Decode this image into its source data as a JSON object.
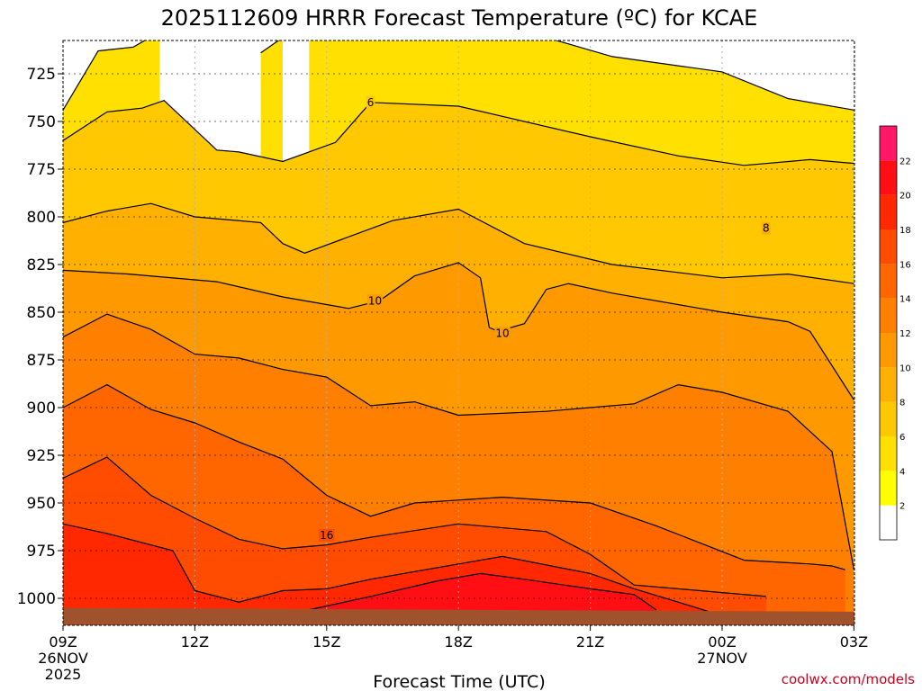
{
  "chart_data": {
    "type": "heatmap",
    "title": "2025112609 HRRR Forecast Temperature (ºC) for KCAE",
    "xlabel": "Forecast Time (UTC)",
    "ylabel": "",
    "x_ticks": [
      "09Z",
      "12Z",
      "15Z",
      "18Z",
      "21Z",
      "00Z",
      "03Z"
    ],
    "x_subticks": [
      {
        "tick": "09Z",
        "lines": [
          "26NOV",
          "2025"
        ]
      },
      {
        "tick": "00Z",
        "lines": [
          "27NOV"
        ]
      }
    ],
    "x_range": [
      "09Z",
      "03Z"
    ],
    "y_axis": "pressure (hPa), decreasing upward",
    "y_ticks": [
      725,
      750,
      775,
      800,
      825,
      850,
      875,
      900,
      925,
      950,
      975,
      1000
    ],
    "y_range": [
      1010,
      710
    ],
    "grid": true,
    "colorbar": {
      "placement": "right",
      "levels": [
        2,
        4,
        6,
        8,
        10,
        12,
        14,
        16,
        18,
        20,
        22
      ],
      "colors": [
        "#ffffff",
        "#ffff00",
        "#ffe000",
        "#ffc800",
        "#ffb000",
        "#ff9900",
        "#ff8000",
        "#ff6600",
        "#ff4c00",
        "#ff2800",
        "#ff0e14",
        "#ff1868"
      ]
    },
    "contour_labels": [
      {
        "text": "6",
        "time_h": 7.0,
        "p": 740
      },
      {
        "text": "8",
        "time_h": 16.0,
        "p": 806
      },
      {
        "text": "10",
        "time_h": 7.1,
        "p": 844
      },
      {
        "text": "10",
        "time_h": 10.0,
        "p": 861
      },
      {
        "text": "16",
        "time_h": 6.0,
        "p": 967
      }
    ],
    "contours": [
      {
        "level": 4,
        "points": [
          [
            0.0,
            744
          ],
          [
            0.8,
            713
          ],
          [
            1.6,
            711
          ],
          [
            2.2,
            703
          ]
        ]
      },
      {
        "level": 4,
        "points": [
          [
            4.5,
            714
          ],
          [
            5.0,
            706
          ]
        ]
      },
      {
        "level": 4,
        "points": [
          [
            5.6,
            704
          ],
          [
            8.0,
            703
          ],
          [
            11.0,
            706
          ],
          [
            12.5,
            716
          ],
          [
            15.0,
            724
          ],
          [
            16.5,
            738
          ],
          [
            18.0,
            744
          ]
        ]
      },
      {
        "level": 6,
        "points": [
          [
            0.0,
            760
          ],
          [
            1.0,
            745
          ],
          [
            1.8,
            743
          ],
          [
            2.3,
            739
          ],
          [
            3.5,
            765
          ],
          [
            4.0,
            766
          ],
          [
            5.0,
            771
          ],
          [
            6.2,
            761
          ],
          [
            7.0,
            740
          ],
          [
            9.0,
            742
          ],
          [
            12.0,
            758
          ],
          [
            14.0,
            768
          ],
          [
            15.5,
            773
          ],
          [
            17.0,
            770
          ],
          [
            18.0,
            772
          ]
        ]
      },
      {
        "level": 8,
        "points": [
          [
            0.0,
            803
          ],
          [
            1.0,
            797
          ],
          [
            2.0,
            793
          ],
          [
            3.0,
            800
          ],
          [
            4.5,
            803
          ],
          [
            5.0,
            814
          ],
          [
            5.5,
            819
          ],
          [
            7.5,
            802
          ],
          [
            9.0,
            796
          ],
          [
            10.5,
            814
          ],
          [
            12.5,
            825
          ],
          [
            15.0,
            832
          ],
          [
            16.5,
            830
          ],
          [
            18.0,
            835
          ]
        ]
      },
      {
        "level": 10,
        "points": [
          [
            0.0,
            828
          ],
          [
            1.5,
            830
          ],
          [
            3.5,
            834
          ],
          [
            5.0,
            842
          ],
          [
            6.5,
            848
          ],
          [
            7.2,
            844
          ],
          [
            8.0,
            831
          ],
          [
            9.0,
            824
          ],
          [
            9.5,
            832
          ],
          [
            9.7,
            858
          ],
          [
            9.9,
            860
          ],
          [
            10.5,
            856
          ],
          [
            11.0,
            838
          ],
          [
            11.5,
            835
          ],
          [
            12.5,
            840
          ],
          [
            15.0,
            850
          ],
          [
            16.5,
            855
          ],
          [
            17.0,
            860
          ],
          [
            18.0,
            896
          ]
        ]
      },
      {
        "level": 12,
        "points": [
          [
            0.0,
            863
          ],
          [
            1.0,
            851
          ],
          [
            2.0,
            859
          ],
          [
            3.0,
            872
          ],
          [
            4.0,
            874
          ],
          [
            5.0,
            880
          ],
          [
            6.0,
            884
          ],
          [
            7.0,
            899
          ],
          [
            8.0,
            897
          ],
          [
            9.0,
            904
          ],
          [
            11.0,
            902
          ],
          [
            13.0,
            898
          ],
          [
            14.0,
            888
          ],
          [
            15.0,
            892
          ],
          [
            16.5,
            902
          ],
          [
            17.5,
            923
          ],
          [
            18.0,
            985
          ]
        ]
      },
      {
        "level": 14,
        "points": [
          [
            0.0,
            900
          ],
          [
            1.0,
            888
          ],
          [
            2.0,
            901
          ],
          [
            3.0,
            908
          ],
          [
            4.0,
            918
          ],
          [
            5.0,
            927
          ],
          [
            6.0,
            946
          ],
          [
            7.0,
            957
          ],
          [
            8.0,
            950
          ],
          [
            10.0,
            947
          ],
          [
            12.0,
            950
          ],
          [
            13.5,
            962
          ],
          [
            15.5,
            980
          ],
          [
            17.0,
            982
          ],
          [
            17.5,
            983
          ],
          [
            17.8,
            985
          ]
        ]
      },
      {
        "level": 16,
        "points": [
          [
            0.0,
            937
          ],
          [
            1.0,
            926
          ],
          [
            2.0,
            946
          ],
          [
            3.0,
            958
          ],
          [
            4.0,
            969
          ],
          [
            5.0,
            974
          ],
          [
            6.0,
            972
          ],
          [
            7.0,
            968
          ],
          [
            9.0,
            961
          ],
          [
            11.0,
            965
          ],
          [
            12.0,
            977
          ],
          [
            13.0,
            993
          ],
          [
            15.0,
            997
          ],
          [
            16.0,
            999
          ]
        ]
      },
      {
        "level": 18,
        "points": [
          [
            0.0,
            961
          ],
          [
            1.0,
            966
          ],
          [
            2.5,
            975
          ],
          [
            3.0,
            996
          ],
          [
            4.0,
            1002
          ],
          [
            5.0,
            996
          ],
          [
            6.0,
            995
          ],
          [
            7.0,
            990
          ],
          [
            8.0,
            986
          ],
          [
            10.0,
            978
          ],
          [
            12.0,
            987
          ],
          [
            13.0,
            995
          ],
          [
            14.0,
            1002
          ],
          [
            14.7,
            1007
          ]
        ]
      },
      {
        "level": 20,
        "points": [
          [
            5.2,
            1008
          ],
          [
            7.0,
            999
          ],
          [
            8.5,
            991
          ],
          [
            9.5,
            987
          ],
          [
            10.5,
            990
          ],
          [
            12.0,
            995
          ],
          [
            13.0,
            998
          ],
          [
            13.5,
            1006
          ]
        ]
      }
    ],
    "terrain_color": "#a0522d",
    "credit": "coolwx.com/models"
  }
}
